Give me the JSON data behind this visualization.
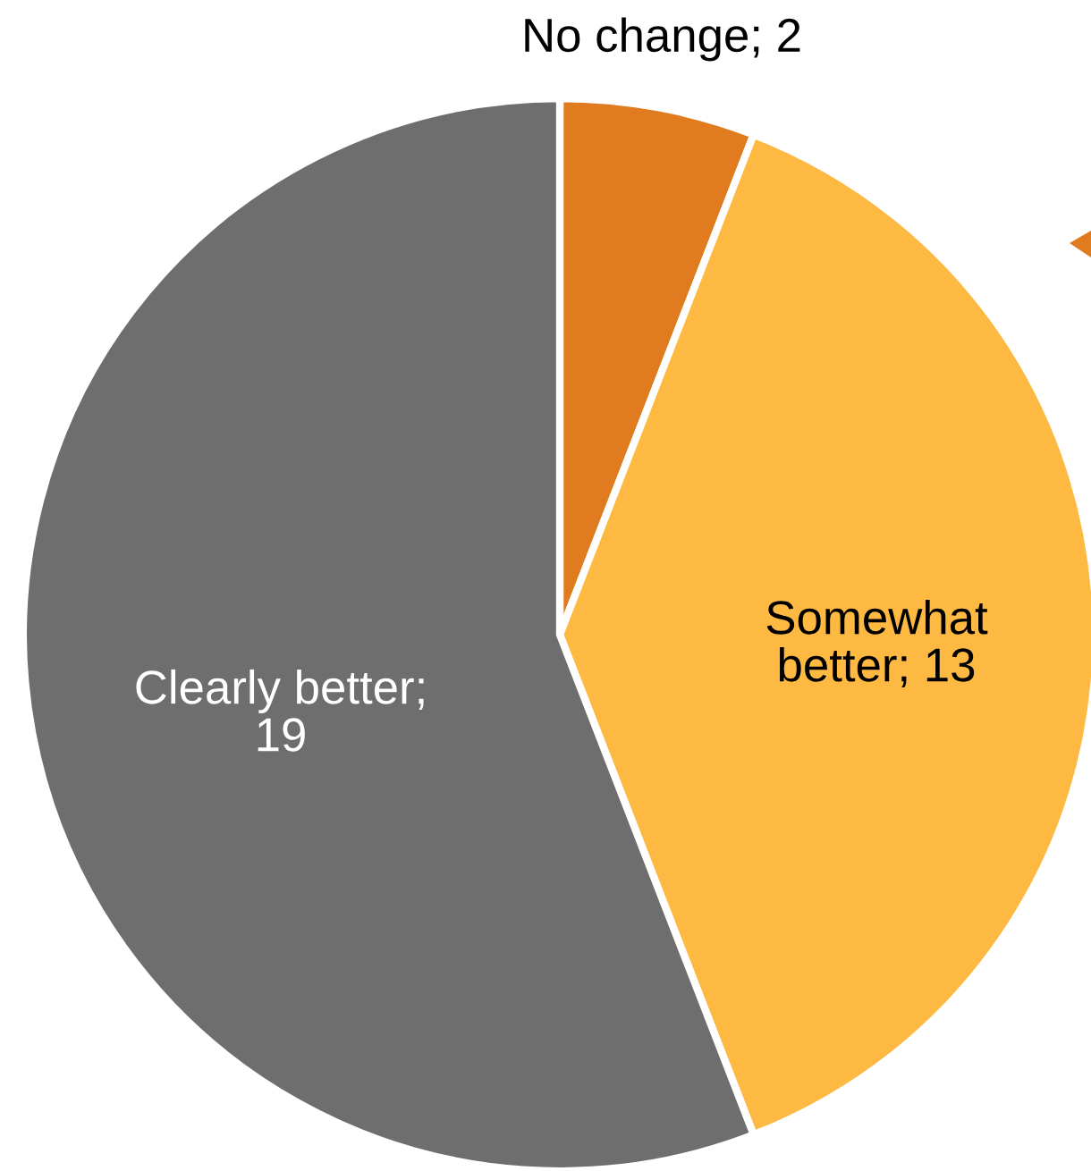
{
  "chart_data": {
    "type": "pie",
    "categories": [
      "No change; 2",
      "Somewhat better; 13",
      "Clearly better; 19"
    ],
    "values": [
      2,
      13,
      19
    ],
    "colors": [
      "#e07b20",
      "#fdb942",
      "#6e6e6e"
    ]
  }
}
